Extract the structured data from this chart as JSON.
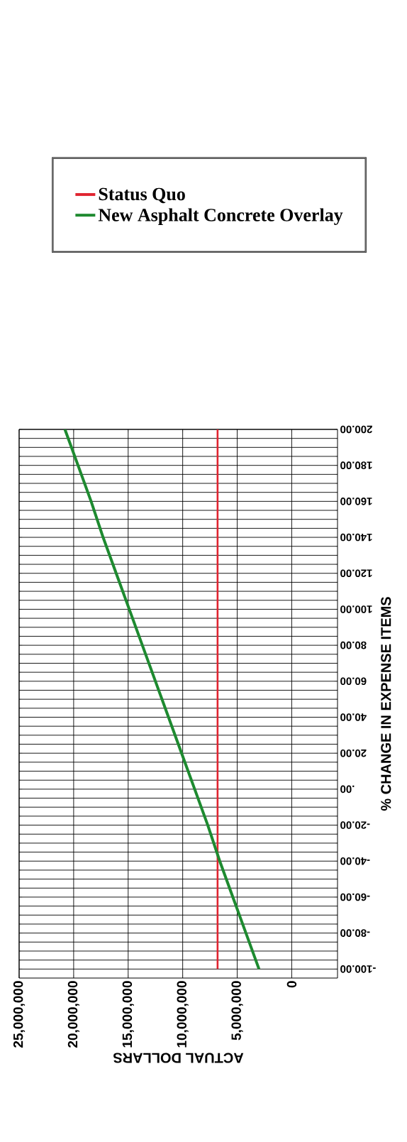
{
  "chart_data": {
    "type": "line",
    "xlabel": "ACTUAL DOLLARS",
    "ylabel": "% CHANGE IN EXPENSE ITEMS",
    "series": [
      {
        "name": "Status Quo",
        "color": "#e02430",
        "x": [
          6800000,
          6800000
        ],
        "values": [
          -100,
          200
        ]
      },
      {
        "name": "New Asphalt Concrete Overlay",
        "color": "#1e8a30",
        "x": [
          3000000,
          4200000,
          5400000,
          6600000,
          7700000,
          8900000,
          10100000,
          11300000,
          12500000,
          13700000,
          14900000,
          16100000,
          17300000,
          18400000,
          19600000,
          20800000
        ],
        "values": [
          -100,
          -80,
          -60,
          -40,
          -20,
          0,
          20,
          40,
          60,
          80,
          100,
          120,
          140,
          160,
          180,
          200
        ]
      }
    ],
    "xlim": [
      25000000,
      -4200000
    ],
    "ylim": [
      -105,
      200
    ],
    "xticks": [
      {
        "value": 25000000,
        "label": "25,000,000"
      },
      {
        "value": 20000000,
        "label": "20,000,000"
      },
      {
        "value": 15000000,
        "label": "15,000,000"
      },
      {
        "value": 10000000,
        "label": "10,000,000"
      },
      {
        "value": 5000000,
        "label": "5,000,000"
      },
      {
        "value": 0,
        "label": "0"
      }
    ],
    "yticks": [
      {
        "value": -100,
        "label": "-100.00"
      },
      {
        "value": -80,
        "label": "-80.00"
      },
      {
        "value": -60,
        "label": "-60.00"
      },
      {
        "value": -40,
        "label": "-40.00"
      },
      {
        "value": -20,
        "label": "-20.00"
      },
      {
        "value": 0,
        "label": ".00"
      },
      {
        "value": 20,
        "label": "20.00"
      },
      {
        "value": 40,
        "label": "40.00"
      },
      {
        "value": 60,
        "label": "60.00"
      },
      {
        "value": 80,
        "label": "80.00"
      },
      {
        "value": 100,
        "label": "100.00"
      },
      {
        "value": 120,
        "label": "120.00"
      },
      {
        "value": 140,
        "label": "140.00"
      },
      {
        "value": 160,
        "label": "160.00"
      },
      {
        "value": 180,
        "label": "180.00"
      },
      {
        "value": 200,
        "label": "200.00"
      }
    ],
    "grid": true,
    "legend": "top",
    "marker": "none",
    "line_style": "solid"
  }
}
